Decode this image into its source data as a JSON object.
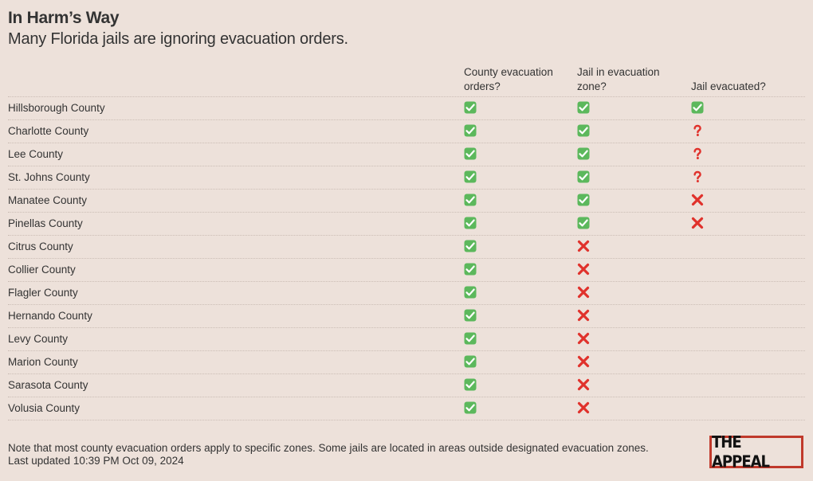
{
  "title": "In Harm’s Way",
  "subtitle": "Many Florida jails are ignoring evacuation orders.",
  "columns": [
    "",
    "County evacuation orders?",
    "Jail in evacuation zone?",
    "Jail evacuated?"
  ],
  "rows": [
    {
      "county": "Hillsborough County",
      "orders": "yes",
      "zone": "yes",
      "evacuated": "yes"
    },
    {
      "county": "Charlotte County",
      "orders": "yes",
      "zone": "yes",
      "evacuated": "unknown"
    },
    {
      "county": "Lee County",
      "orders": "yes",
      "zone": "yes",
      "evacuated": "unknown"
    },
    {
      "county": "St. Johns County",
      "orders": "yes",
      "zone": "yes",
      "evacuated": "unknown"
    },
    {
      "county": "Manatee County",
      "orders": "yes",
      "zone": "yes",
      "evacuated": "no"
    },
    {
      "county": "Pinellas County",
      "orders": "yes",
      "zone": "yes",
      "evacuated": "no"
    },
    {
      "county": "Citrus County",
      "orders": "yes",
      "zone": "no",
      "evacuated": ""
    },
    {
      "county": "Collier County",
      "orders": "yes",
      "zone": "no",
      "evacuated": ""
    },
    {
      "county": "Flagler County",
      "orders": "yes",
      "zone": "no",
      "evacuated": ""
    },
    {
      "county": "Hernando County",
      "orders": "yes",
      "zone": "no",
      "evacuated": ""
    },
    {
      "county": "Levy County",
      "orders": "yes",
      "zone": "no",
      "evacuated": ""
    },
    {
      "county": "Marion County",
      "orders": "yes",
      "zone": "no",
      "evacuated": ""
    },
    {
      "county": "Sarasota County",
      "orders": "yes",
      "zone": "no",
      "evacuated": ""
    },
    {
      "county": "Volusia County",
      "orders": "yes",
      "zone": "no",
      "evacuated": ""
    }
  ],
  "icons": {
    "yes": "check-mark-icon",
    "no": "cross-mark-icon",
    "unknown": "question-mark-icon"
  },
  "colors": {
    "background": "#ede1da",
    "check": "#5cb85c",
    "cross": "#e0312b",
    "question": "#e0312b",
    "logo_border": "#c0392b"
  },
  "footer": {
    "note": "Note that most county evacuation orders apply to specific zones. Some jails are located in areas outside designated evacuation zones.",
    "updated": "Last updated 10:39 PM Oct 09, 2024"
  },
  "logo": "THE APPEAL"
}
